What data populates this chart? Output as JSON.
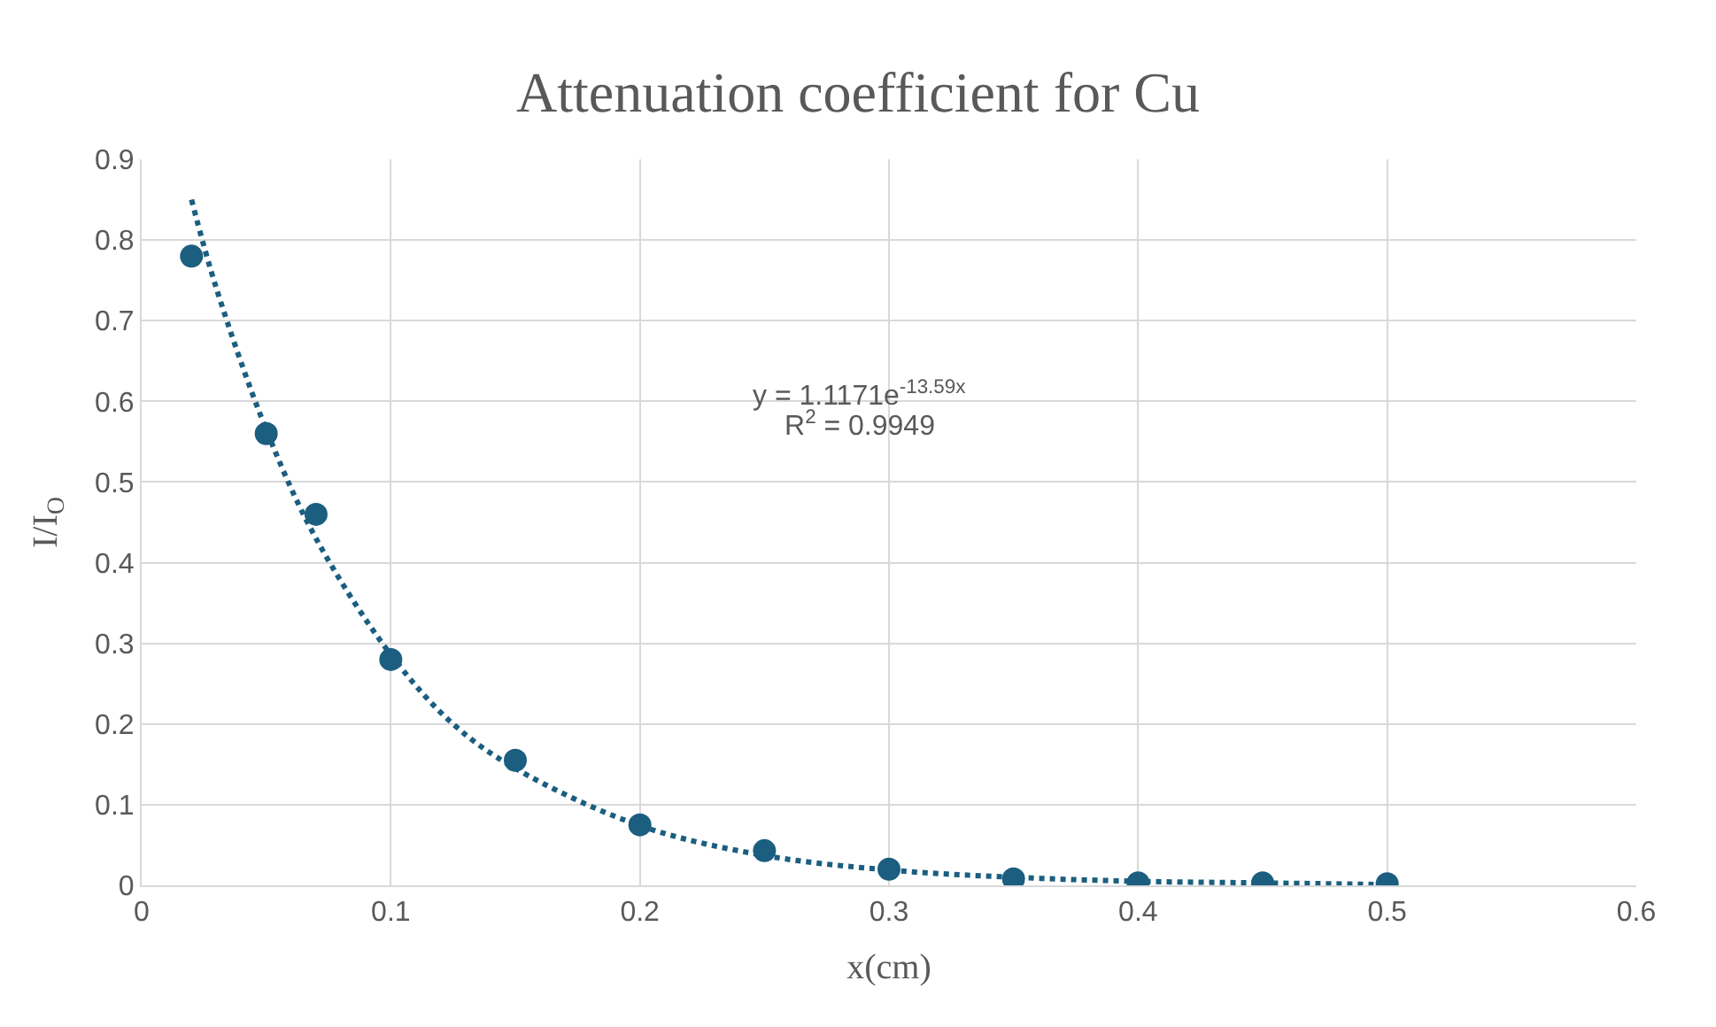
{
  "chart_data": {
    "type": "scatter",
    "title": "Attenuation coefficient for Cu",
    "xlabel": "x(cm)",
    "ylabel": "I/I$_{O}$",
    "series": [
      {
        "color": "#1b5e80",
        "marker": "circle",
        "x": [
          0.02,
          0.05,
          0.07,
          0.1,
          0.15,
          0.2,
          0.25,
          0.3,
          0.35,
          0.4,
          0.45,
          0.5
        ],
        "values": [
          0.78,
          0.56,
          0.46,
          0.28,
          0.155,
          0.075,
          0.043,
          0.02,
          0.008,
          0.003,
          0.003,
          0.002
        ]
      },
      {
        "type": "line",
        "color": "#1b5e80",
        "line_style": "dotted",
        "x": [
          0.02,
          0.03,
          0.05,
          0.07,
          0.1,
          0.125,
          0.15,
          0.2,
          0.25,
          0.3,
          0.35,
          0.4,
          0.45,
          0.5
        ],
        "values": [
          0.85,
          0.74,
          0.565,
          0.43,
          0.286,
          0.2,
          0.145,
          0.074,
          0.037,
          0.019,
          0.01,
          0.005,
          0.003,
          0.001
        ]
      }
    ],
    "annotations": [
      "y = 1.1171e$^{-13.59x}$",
      "R$^{2}$ = 0.9949"
    ],
    "xlim": [
      0,
      0.6
    ],
    "xticks": [
      0,
      0.1,
      0.2,
      0.3,
      0.4,
      0.5,
      0.6
    ],
    "ylim": [
      0,
      0.9
    ],
    "yticks": [
      0,
      0.1,
      0.2,
      0.3,
      0.4,
      0.5,
      0.6,
      0.7,
      0.8,
      0.9
    ],
    "grid": true,
    "legend": false
  }
}
